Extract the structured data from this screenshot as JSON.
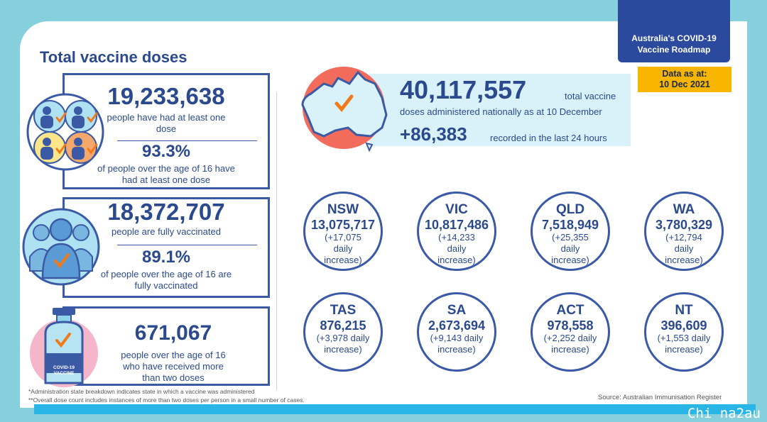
{
  "title": "Total vaccine doses",
  "roadmap": {
    "line1": "Australia's COVID-19",
    "line2": "Vaccine Roadmap"
  },
  "data_as_at": {
    "line1": "Data as at:",
    "line2": "10 Dec 2021"
  },
  "first_dose": {
    "count": "19,233,638",
    "count_desc": "people have had at least one dose",
    "percent": "93.3%",
    "percent_desc": "of people over the age of 16 have had at least one dose"
  },
  "fully_vaccinated": {
    "count": "18,372,707",
    "count_desc": "people are fully vaccinated",
    "percent": "89.1%",
    "percent_desc": "of people over the age of 16 are fully vaccinated"
  },
  "more_than_two": {
    "count": "671,067",
    "desc": "people over the age of 16 who have received more than two doses",
    "vial_label_1": "COVID-19",
    "vial_label_2": "VACCINE"
  },
  "national": {
    "total": "40,117,557",
    "total_suffix": "total vaccine",
    "total_desc": "doses administered nationally as at 10 December",
    "recent": "+86,383",
    "recent_desc": "recorded in the last 24 hours"
  },
  "states": [
    {
      "code": "NSW",
      "value": "13,075,717",
      "increase": "(+17,075 daily increase)"
    },
    {
      "code": "VIC",
      "value": "10,817,486",
      "increase": "(+14,233 daily increase)"
    },
    {
      "code": "QLD",
      "value": "7,518,949",
      "increase": "(+25,355 daily increase)"
    },
    {
      "code": "WA",
      "value": "3,780,329",
      "increase": "(+12,794 daily increase)"
    },
    {
      "code": "TAS",
      "value": "876,215",
      "increase": "(+3,978 daily increase)"
    },
    {
      "code": "SA",
      "value": "2,673,694",
      "increase": "(+9,143 daily increase)"
    },
    {
      "code": "ACT",
      "value": "978,558",
      "increase": "(+2,252 daily increase)"
    },
    {
      "code": "NT",
      "value": "396,609",
      "increase": "(+1,553 daily increase)"
    }
  ],
  "footnotes": {
    "note1": "*Administration state breakdown indicates state in which a vaccine was administered",
    "note2": "**Overall dose count includes instances of more than two doses per person in a small number of cases."
  },
  "source": "Source: Australian Immunisation Register",
  "watermark": "Chi na2au",
  "colors": {
    "navy": "#2b4a8e",
    "accent_orange": "#f26b5b",
    "tick": "#f07a1a",
    "background": "#86cfdc",
    "panel": "#d9f1f9"
  },
  "icons": [
    "people-check-icon",
    "crowd-check-icon",
    "vaccine-vial-icon",
    "australia-map-icon",
    "checkmark-icon"
  ]
}
